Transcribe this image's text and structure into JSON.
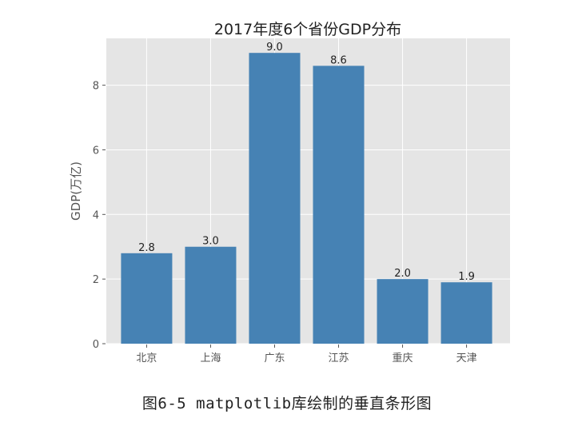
{
  "chart_data": {
    "type": "bar",
    "title": "2017年度6个省份GDP分布",
    "xlabel": "",
    "ylabel": "GDP(万亿)",
    "categories": [
      "北京",
      "上海",
      "广东",
      "江苏",
      "重庆",
      "天津"
    ],
    "values": [
      2.8,
      3.0,
      9.0,
      8.6,
      2.0,
      1.9
    ],
    "data_labels": [
      "2.8",
      "3.0",
      "9.0",
      "8.6",
      "2.0",
      "1.9"
    ],
    "yticks": [
      0,
      2,
      4,
      6,
      8
    ],
    "ylim": [
      0,
      9.45
    ],
    "xlim": [
      -0.63,
      5.68
    ],
    "grid": true,
    "style": "ggplot",
    "colors": {
      "bar": "#4682b4",
      "background": "#e5e5e5",
      "grid": "#ffffff",
      "text": "#555555"
    }
  },
  "caption": "图6-5  matplotlib库绘制的垂直条形图"
}
